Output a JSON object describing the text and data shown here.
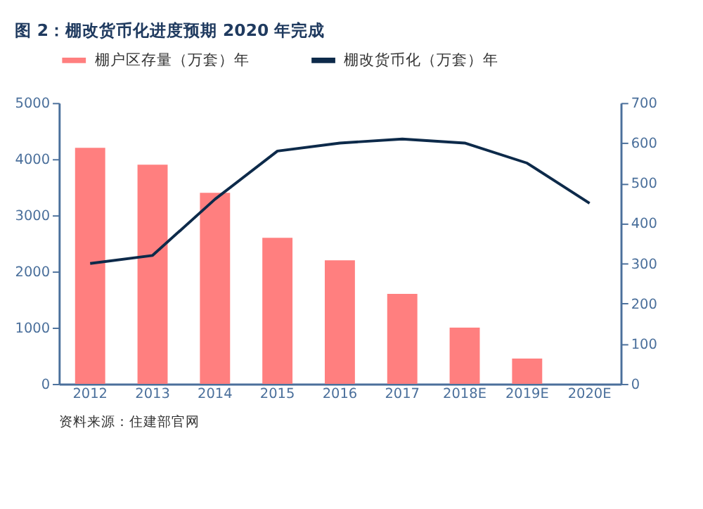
{
  "chart_data": {
    "type": "bar",
    "title": "图 2：棚改货币化进度预期 2020 年完成",
    "categories": [
      "2012",
      "2013",
      "2014",
      "2015",
      "2016",
      "2017",
      "2018E",
      "2019E",
      "2020E"
    ],
    "series": [
      {
        "name": "棚户区存量（万套）年",
        "color": "#ff7f7f",
        "values": [
          4200,
          3900,
          3400,
          2600,
          2200,
          1600,
          1000,
          450,
          null
        ]
      },
      {
        "name": "棚改货币化（万套）年",
        "type": "line",
        "axis": "y2",
        "color": "#0d2a4a",
        "values": [
          300,
          320,
          460,
          580,
          600,
          610,
          600,
          550,
          450
        ]
      }
    ],
    "ylim": [
      0,
      5000
    ],
    "yticks": [
      0,
      1000,
      2000,
      3000,
      4000,
      5000
    ],
    "y2lim": [
      0,
      700
    ],
    "y2ticks": [
      0,
      100,
      200,
      300,
      400,
      500,
      600,
      700
    ],
    "legend": "top",
    "grid": false,
    "annotations": [
      "资料来源：住建部官网"
    ]
  }
}
